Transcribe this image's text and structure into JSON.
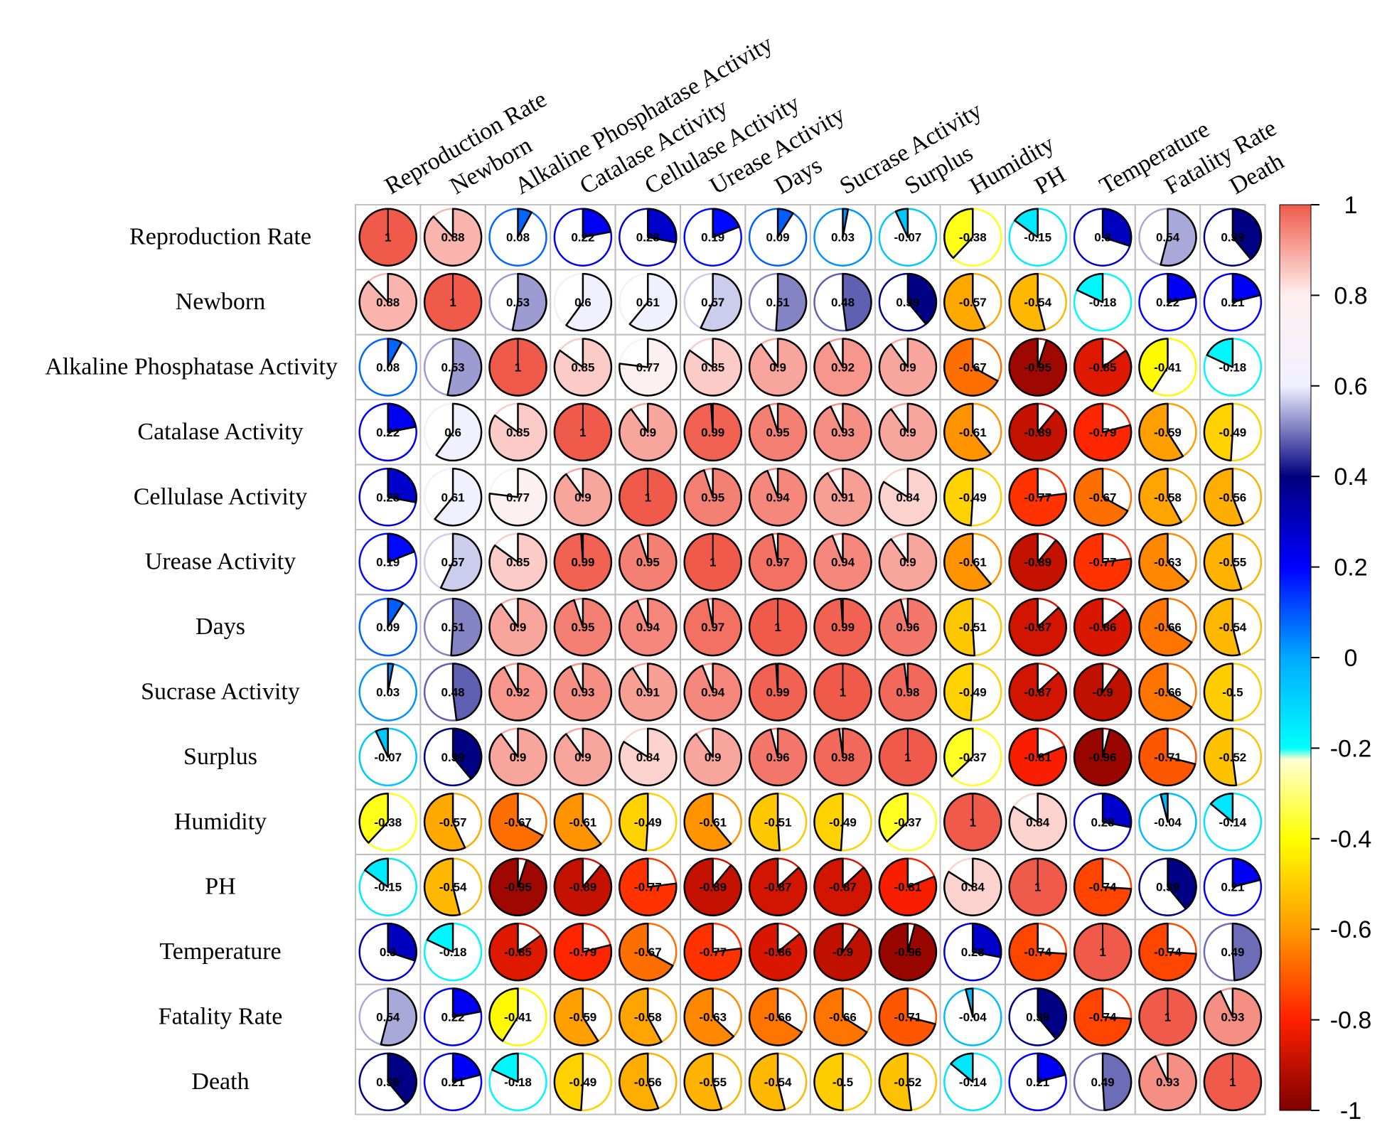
{
  "chart_data": {
    "type": "heatmap",
    "title": "",
    "style": "pie-correlation-matrix",
    "row_labels": [
      "Reproduction Rate",
      "Newborn",
      "Alkaline Phosphatase Activity",
      "Catalase Activity",
      "Cellulase Activity",
      "Urease Activity",
      "Days",
      "Sucrase Activity",
      "Surplus",
      "Humidity",
      "PH",
      "Temperature",
      "Fatality Rate",
      "Death"
    ],
    "col_labels": [
      "Reproduction Rate",
      "Newborn",
      "Alkaline Phosphatase Activity",
      "Catalase Activity",
      "Cellulase Activity",
      "Urease Activity",
      "Days",
      "Sucrase Activity",
      "Surplus",
      "Humidity",
      "PH",
      "Temperature",
      "Fatality Rate",
      "Death"
    ],
    "values": [
      [
        1,
        0.88,
        0.08,
        0.22,
        0.28,
        0.19,
        0.09,
        0.03,
        -0.07,
        -0.38,
        -0.15,
        0.3,
        0.54,
        0.39
      ],
      [
        0.88,
        1,
        0.53,
        0.6,
        0.61,
        0.57,
        0.51,
        0.48,
        0.39,
        -0.57,
        -0.54,
        -0.18,
        0.22,
        0.21
      ],
      [
        0.08,
        0.53,
        1,
        0.85,
        0.77,
        0.85,
        0.9,
        0.92,
        0.9,
        -0.67,
        -0.95,
        -0.85,
        -0.41,
        -0.18
      ],
      [
        0.22,
        0.6,
        0.85,
        1,
        0.9,
        0.99,
        0.95,
        0.93,
        0.9,
        -0.61,
        -0.89,
        -0.79,
        -0.59,
        -0.49
      ],
      [
        0.28,
        0.61,
        0.77,
        0.9,
        1,
        0.95,
        0.94,
        0.91,
        0.84,
        -0.49,
        -0.77,
        -0.67,
        -0.58,
        -0.56
      ],
      [
        0.19,
        0.57,
        0.85,
        0.99,
        0.95,
        1,
        0.97,
        0.94,
        0.9,
        -0.61,
        -0.89,
        -0.77,
        -0.63,
        -0.55
      ],
      [
        0.09,
        0.51,
        0.9,
        0.95,
        0.94,
        0.97,
        1,
        0.99,
        0.96,
        -0.51,
        -0.87,
        -0.86,
        -0.66,
        -0.54
      ],
      [
        0.03,
        0.48,
        0.92,
        0.93,
        0.91,
        0.94,
        0.99,
        1,
        0.98,
        -0.49,
        -0.87,
        -0.9,
        -0.66,
        -0.5
      ],
      [
        -0.07,
        0.39,
        0.9,
        0.9,
        0.84,
        0.9,
        0.96,
        0.98,
        1,
        -0.37,
        -0.81,
        -0.96,
        -0.71,
        -0.52
      ],
      [
        -0.38,
        -0.57,
        -0.67,
        -0.61,
        -0.49,
        -0.61,
        -0.51,
        -0.49,
        -0.37,
        1,
        0.84,
        0.28,
        -0.04,
        -0.14
      ],
      [
        -0.15,
        -0.54,
        -0.95,
        -0.89,
        -0.77,
        -0.89,
        -0.87,
        -0.87,
        -0.81,
        0.84,
        1,
        -0.74,
        0.39,
        0.21
      ],
      [
        0.3,
        -0.18,
        -0.85,
        -0.79,
        -0.67,
        -0.77,
        -0.86,
        -0.9,
        -0.96,
        0.28,
        -0.74,
        1,
        -0.74,
        0.49
      ],
      [
        0.54,
        0.22,
        -0.41,
        -0.59,
        -0.58,
        -0.63,
        -0.66,
        -0.66,
        -0.71,
        -0.04,
        0.39,
        -0.74,
        1,
        0.93
      ],
      [
        0.39,
        0.21,
        -0.18,
        -0.49,
        -0.56,
        -0.55,
        -0.54,
        -0.5,
        -0.52,
        -0.14,
        0.21,
        0.49,
        0.93,
        1
      ]
    ],
    "display_labels": [
      [
        "1",
        "0.88",
        "0.08",
        "0.22",
        "0.28",
        "0.19",
        "0.09",
        "0.03",
        "-0.07",
        "-0.38",
        "-0.15",
        "0.3",
        "0.54",
        "0.39"
      ],
      [
        "0.88",
        "1",
        "0.53",
        "0.6",
        "0.61",
        "0.57",
        "0.51",
        "0.48",
        "0.39",
        "-0.57",
        "-0.54",
        "-0.18",
        "0.22",
        "0.21"
      ],
      [
        "0.08",
        "0.53",
        "1",
        "0.85",
        "0.77",
        "0.85",
        "0.9",
        "0.92",
        "0.9",
        "-0.67",
        "-0.95",
        "-0.85",
        "-0.41",
        "-0.18"
      ],
      [
        "0.22",
        "0.6",
        "0.85",
        "1",
        "0.9",
        "0.99",
        "0.95",
        "0.93",
        "0.9",
        "-0.61",
        "-0.89",
        "-0.79",
        "-0.59",
        "-0.49"
      ],
      [
        "0.28",
        "0.61",
        "0.77",
        "0.9",
        "1",
        "0.95",
        "0.94",
        "0.91",
        "0.84",
        "-0.49",
        "-0.77",
        "-0.67",
        "-0.58",
        "-0.56"
      ],
      [
        "0.19",
        "0.57",
        "0.85",
        "0.99",
        "0.95",
        "1",
        "0.97",
        "0.94",
        "0.9",
        "-0.61",
        "-0.89",
        "-0.77",
        "-0.63",
        "-0.55"
      ],
      [
        "0.09",
        "0.51",
        "0.9",
        "0.95",
        "0.94",
        "0.97",
        "1",
        "0.99",
        "0.96",
        "-0.51",
        "-0.87",
        "-0.86",
        "-0.66",
        "-0.54"
      ],
      [
        "0.03",
        "0.48",
        "0.92",
        "0.93",
        "0.91",
        "0.94",
        "0.99",
        "1",
        "0.98",
        "-0.49",
        "-0.87",
        "-0.9",
        "-0.66",
        "-0.5"
      ],
      [
        "-0.07",
        "0.39",
        "0.9",
        "0.9",
        "0.84",
        "0.9",
        "0.96",
        "0.98",
        "1",
        "-0.37",
        "-0.81",
        "-0.96",
        "-0.71",
        "-0.52"
      ],
      [
        "-0.38",
        "-0.57",
        "-0.67",
        "-0.61",
        "-0.49",
        "-0.61",
        "-0.51",
        "-0.49",
        "-0.37",
        "1",
        "0.84",
        "0.28",
        "-0.04",
        "-0.14"
      ],
      [
        "-0.15",
        "-0.54",
        "-0.95",
        "-0.89",
        "-0.77",
        "-0.89",
        "-0.87",
        "-0.87",
        "-0.81",
        "0.84",
        "1",
        "-0.74",
        "0.39",
        "0.21"
      ],
      [
        "0.3",
        "-0.18",
        "-0.85",
        "-0.79",
        "-0.67",
        "-0.77",
        "-0.86",
        "-0.9",
        "-0.96",
        "0.28",
        "-0.74",
        "1",
        "-0.74",
        "0.49"
      ],
      [
        "0.54",
        "0.22",
        "-0.41",
        "-0.59",
        "-0.58",
        "-0.63",
        "-0.66",
        "-0.66",
        "-0.71",
        "-0.04",
        "0.39",
        "-0.74",
        "1",
        "0.93"
      ],
      [
        "0.39",
        "0.21",
        "-0.18",
        "-0.49",
        "-0.56",
        "-0.55",
        "-0.54",
        "-0.5",
        "-0.52",
        "-0.14",
        "0.21",
        "0.49",
        "0.93",
        "1"
      ]
    ],
    "colorbar": {
      "range": [
        -1,
        1
      ],
      "ticks": [
        1,
        0.8,
        0.6,
        0.4,
        0.2,
        0,
        -0.2,
        -0.4,
        -0.6,
        -0.8,
        -1
      ],
      "tick_labels": [
        "1",
        "0.8",
        "0.6",
        "0.4",
        "0.2",
        "0",
        "-0.2",
        "-0.4",
        "-0.6",
        "-0.8",
        "-1"
      ],
      "position": "right"
    },
    "color_stops": [
      {
        "value": -1,
        "color": "#7f0000"
      },
      {
        "value": -0.8,
        "color": "#ff2000"
      },
      {
        "value": -0.6,
        "color": "#ff9a00"
      },
      {
        "value": -0.4,
        "color": "#ffff00"
      },
      {
        "value": -0.2,
        "color": "#fffff0"
      },
      {
        "value": -0.2,
        "color": "#00ffff"
      },
      {
        "value": 0,
        "color": "#00aaff"
      },
      {
        "value": 0.2,
        "color": "#0000ff"
      },
      {
        "value": 0.4,
        "color": "#00007f"
      },
      {
        "value": 0.6,
        "color": "#f0f0ff"
      },
      {
        "value": 0.8,
        "color": "#fff0f0"
      },
      {
        "value": 1,
        "color": "#f05a4a"
      }
    ],
    "grid_color": "#c0c0c0",
    "pie_outline_color": "#000000"
  }
}
